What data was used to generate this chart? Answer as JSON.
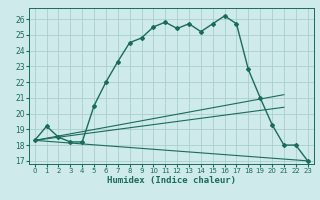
{
  "xlabel": "Humidex (Indice chaleur)",
  "ylabel": "",
  "bg_color": "#ceeaea",
  "grid_color": "#aacfcf",
  "line_color": "#1a6b5a",
  "xlim": [
    -0.5,
    23.5
  ],
  "ylim": [
    16.8,
    26.7
  ],
  "yticks": [
    17,
    18,
    19,
    20,
    21,
    22,
    23,
    24,
    25,
    26
  ],
  "xticks": [
    0,
    1,
    2,
    3,
    4,
    5,
    6,
    7,
    8,
    9,
    10,
    11,
    12,
    13,
    14,
    15,
    16,
    17,
    18,
    19,
    20,
    21,
    22,
    23
  ],
  "main_x": [
    0,
    1,
    2,
    3,
    4,
    5,
    6,
    7,
    8,
    9,
    10,
    11,
    12,
    13,
    14,
    15,
    16,
    17,
    18,
    19,
    20,
    21,
    22,
    23
  ],
  "main_y": [
    18.3,
    19.2,
    18.5,
    18.2,
    18.2,
    20.5,
    22.0,
    23.3,
    24.5,
    24.8,
    25.5,
    25.8,
    25.4,
    25.7,
    25.2,
    25.7,
    26.2,
    25.7,
    22.8,
    21.0,
    19.3,
    18.0,
    18.0,
    17.0
  ],
  "line1_x": [
    0,
    21
  ],
  "line1_y": [
    18.3,
    21.2
  ],
  "line2_x": [
    0,
    21
  ],
  "line2_y": [
    18.3,
    20.4
  ],
  "line3_x": [
    0,
    23
  ],
  "line3_y": [
    18.3,
    17.0
  ]
}
